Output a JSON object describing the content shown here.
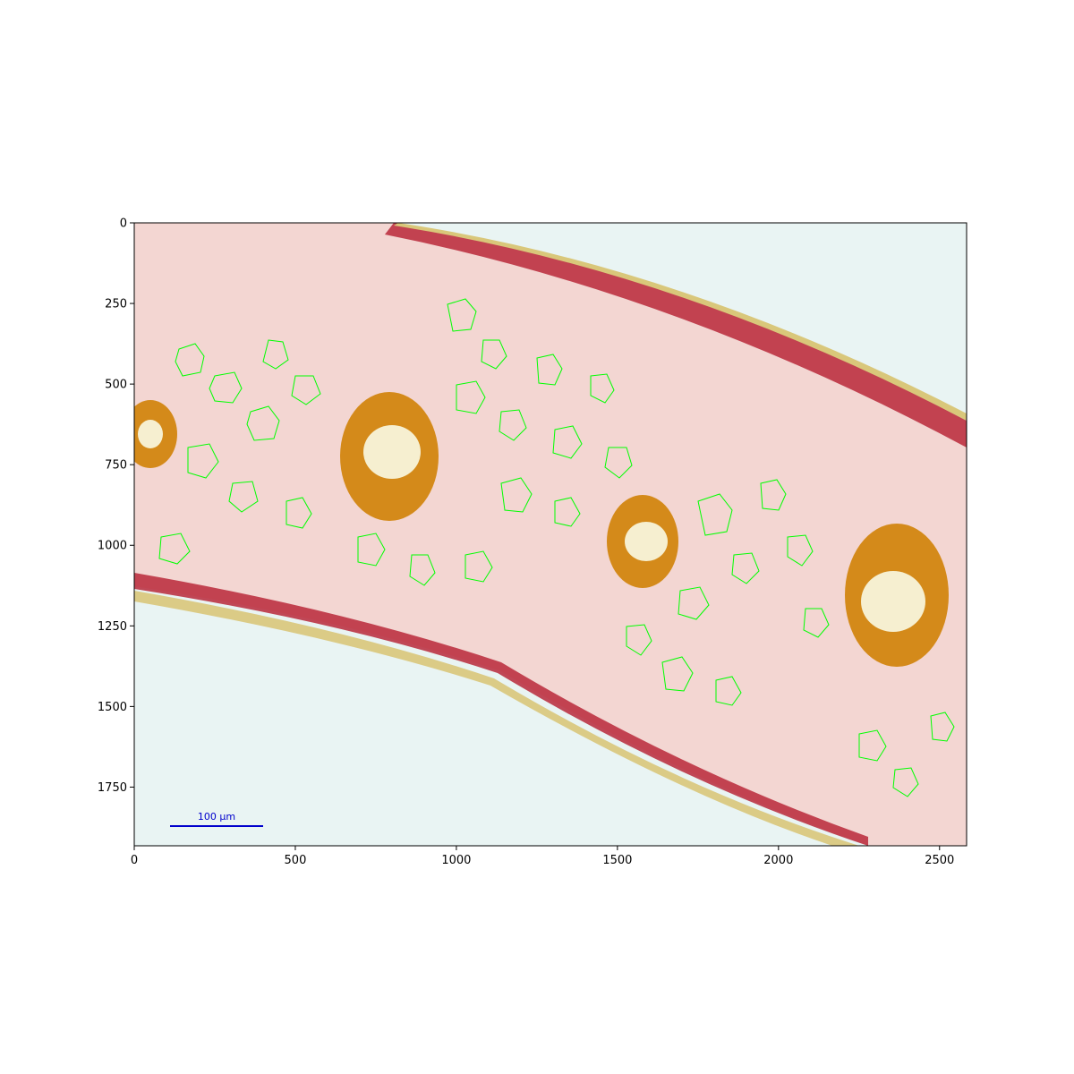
{
  "figure": {
    "image_description_kind": "micrograph",
    "background_color": "#ffffff",
    "plot_area_color": "#e9f4f3"
  },
  "axes": {
    "x_range": [
      0,
      2584
    ],
    "y_range": [
      1932,
      0
    ],
    "x_ticks": [
      {
        "value": 0,
        "label": "0"
      },
      {
        "value": 500,
        "label": "500"
      },
      {
        "value": 1000,
        "label": "1000"
      },
      {
        "value": 1500,
        "label": "1500"
      },
      {
        "value": 2000,
        "label": "2000"
      },
      {
        "value": 2500,
        "label": "2500"
      }
    ],
    "y_ticks": [
      {
        "value": 0,
        "label": "0"
      },
      {
        "value": 250,
        "label": "250"
      },
      {
        "value": 500,
        "label": "500"
      },
      {
        "value": 750,
        "label": "750"
      },
      {
        "value": 1000,
        "label": "1000"
      },
      {
        "value": 1250,
        "label": "1250"
      },
      {
        "value": 1500,
        "label": "1500"
      },
      {
        "value": 1750,
        "label": "1750"
      }
    ]
  },
  "scalebar": {
    "label": "100 µm",
    "color": "#0000cc"
  },
  "colors": {
    "tissue": "#f3d6d2",
    "epidermis": "#b8283a",
    "cuticle": "#d9c77a",
    "bundle_sheath": "#d48a1a",
    "cell_outline": "#00ff00",
    "xylem": "#f6efd0"
  }
}
